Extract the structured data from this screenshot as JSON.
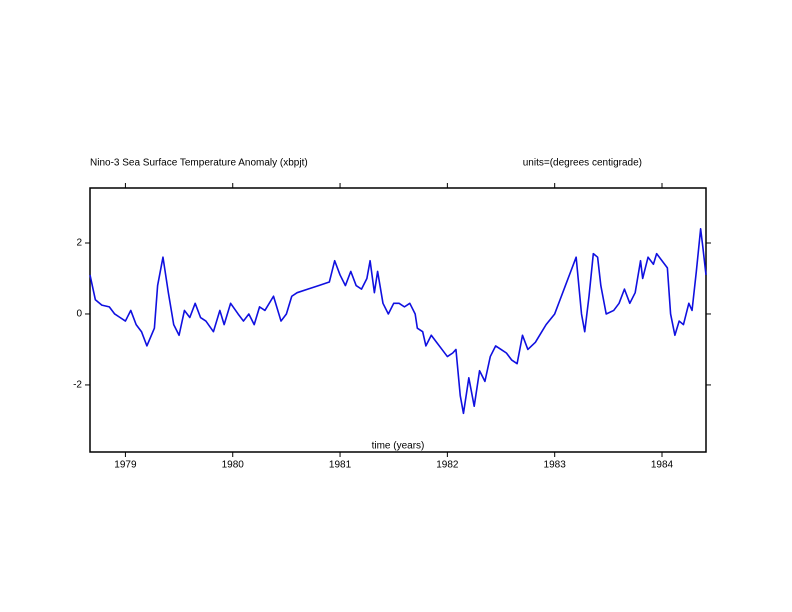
{
  "chart_data": {
    "type": "line",
    "title": "Nino-3 Sea Surface Temperature Anomaly (xbpjt)",
    "subtitle": "units=(degrees centigrade)",
    "xlabel": "time (years)",
    "xlim": [
      1978.67,
      1984.41
    ],
    "xticks": [
      1979,
      1980,
      1981,
      1982,
      1983,
      1984
    ],
    "ylim": [
      -3.89,
      3.55
    ],
    "yticks": [
      -2,
      0,
      2
    ],
    "x": [
      1978.67,
      1978.72,
      1978.78,
      1978.85,
      1978.9,
      1978.95,
      1979.0,
      1979.05,
      1979.1,
      1979.15,
      1979.2,
      1979.27,
      1979.3,
      1979.35,
      1979.4,
      1979.45,
      1979.5,
      1979.55,
      1979.6,
      1979.65,
      1979.7,
      1979.75,
      1979.82,
      1979.88,
      1979.92,
      1979.98,
      1980.05,
      1980.1,
      1980.15,
      1980.2,
      1980.25,
      1980.3,
      1980.38,
      1980.45,
      1980.5,
      1980.55,
      1980.6,
      1980.7,
      1980.8,
      1980.9,
      1980.95,
      1981.0,
      1981.05,
      1981.1,
      1981.15,
      1981.2,
      1981.25,
      1981.28,
      1981.32,
      1981.35,
      1981.4,
      1981.45,
      1981.5,
      1981.55,
      1981.6,
      1981.65,
      1981.7,
      1981.72,
      1981.77,
      1981.8,
      1981.85,
      1981.9,
      1981.95,
      1982.0,
      1982.05,
      1982.08,
      1982.12,
      1982.15,
      1982.2,
      1982.25,
      1982.3,
      1982.35,
      1982.4,
      1982.45,
      1982.5,
      1982.55,
      1982.6,
      1982.65,
      1982.7,
      1982.75,
      1982.82,
      1982.88,
      1982.92,
      1983.0,
      1983.05,
      1983.1,
      1983.15,
      1983.2,
      1983.25,
      1983.28,
      1983.32,
      1983.36,
      1983.4,
      1983.43,
      1983.48,
      1983.55,
      1983.6,
      1983.65,
      1983.7,
      1983.75,
      1983.8,
      1983.82,
      1983.87,
      1983.92,
      1983.95,
      1984.0,
      1984.05,
      1984.08,
      1984.12,
      1984.16,
      1984.2,
      1984.25,
      1984.28,
      1984.32,
      1984.36,
      1984.38,
      1984.41
    ],
    "series": [
      {
        "name": "Nino-3 SST anomaly",
        "color": "#1010e0",
        "values": [
          1.1,
          0.4,
          0.25,
          0.2,
          0.0,
          -0.1,
          -0.2,
          0.1,
          -0.3,
          -0.5,
          -0.9,
          -0.4,
          0.8,
          1.6,
          0.6,
          -0.3,
          -0.6,
          0.1,
          -0.1,
          0.3,
          -0.1,
          -0.2,
          -0.5,
          0.1,
          -0.3,
          0.3,
          0.0,
          -0.2,
          0.0,
          -0.3,
          0.2,
          0.1,
          0.5,
          -0.2,
          0.0,
          0.5,
          0.6,
          0.7,
          0.8,
          0.9,
          1.5,
          1.1,
          0.8,
          1.2,
          0.8,
          0.7,
          1.0,
          1.5,
          0.6,
          1.2,
          0.3,
          0.0,
          0.3,
          0.3,
          0.2,
          0.3,
          0.0,
          -0.4,
          -0.5,
          -0.9,
          -0.6,
          -0.8,
          -1.0,
          -1.2,
          -1.1,
          -1.0,
          -2.3,
          -2.8,
          -1.8,
          -2.6,
          -1.6,
          -1.9,
          -1.2,
          -0.9,
          -1.0,
          -1.1,
          -1.3,
          -1.4,
          -0.6,
          -1.0,
          -0.8,
          -0.5,
          -0.3,
          0.0,
          0.4,
          0.8,
          1.2,
          1.6,
          0.0,
          -0.5,
          0.5,
          1.7,
          1.6,
          0.8,
          0.0,
          0.1,
          0.3,
          0.7,
          0.3,
          0.6,
          1.5,
          1.0,
          1.6,
          1.4,
          1.7,
          1.5,
          1.3,
          0.0,
          -0.6,
          -0.2,
          -0.3,
          0.3,
          0.1,
          1.2,
          2.4,
          1.9,
          1.1
        ]
      }
    ]
  }
}
